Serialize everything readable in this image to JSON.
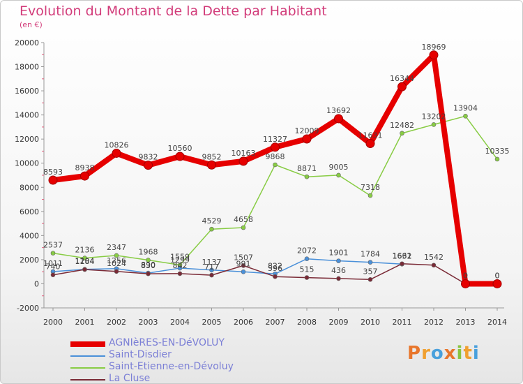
{
  "title": "Evolution du Montant de la Dette par Habitant",
  "subtitle": "(en €)",
  "logo": "Proxiti",
  "chart_data": {
    "type": "line",
    "title": "Evolution du Montant de la Dette par Habitant",
    "subtitle": "(en €)",
    "x": [
      "2000",
      "2001",
      "2002",
      "2003",
      "2004",
      "2005",
      "2006",
      "2007",
      "2008",
      "2009",
      "2010",
      "2011",
      "2012",
      "2013",
      "2014"
    ],
    "ylim": [
      -2000,
      20000
    ],
    "yticks": [
      -2000,
      0,
      2000,
      4000,
      6000,
      8000,
      10000,
      12000,
      14000,
      16000,
      18000,
      20000
    ],
    "grid": false,
    "legend_position": "bottom-left",
    "series": [
      {
        "name": "AGNIèRES-EN-DéVOLUY",
        "color": "#e60000",
        "values": [
          8593,
          8938,
          10826,
          9832,
          10560,
          9852,
          10163,
          11327,
          12009,
          13692,
          11631,
          16344,
          18969,
          0,
          0
        ],
        "labels": [
          "8593",
          "8938",
          "10826",
          "9832",
          "10560",
          "9852",
          "10163",
          "11327",
          "12009",
          "13692",
          "11631",
          "16344",
          "18969",
          "0",
          "0"
        ]
      },
      {
        "name": "Saint-Disdier",
        "color": "#4a90d9",
        "values": [
          1011,
          1204,
          1256,
          890,
          1299,
          1137,
          991,
          822,
          2072,
          1901,
          1784,
          1632,
          null,
          null,
          null
        ],
        "labels": [
          "1011",
          "1204",
          "1256",
          "890",
          "1299",
          "1137",
          "991",
          "822",
          "2072",
          "1901",
          "1784",
          "1632",
          "",
          "",
          ""
        ]
      },
      {
        "name": "Saint-Etienne-en-Dévoluy",
        "color": "#88cc44",
        "values": [
          2537,
          2136,
          2347,
          1968,
          1559,
          4529,
          4658,
          9868,
          8871,
          9005,
          7318,
          12482,
          13202,
          13904,
          10335
        ],
        "labels": [
          "2537",
          "2136",
          "2347",
          "1968",
          "1559",
          "4529",
          "4658",
          "9868",
          "8871",
          "9005",
          "7318",
          "12482",
          "13202",
          "13904",
          "10335"
        ]
      },
      {
        "name": "La Cluse",
        "color": "#7a2a36",
        "values": [
          740,
          1184,
          1024,
          830,
          842,
          717,
          1507,
          596,
          515,
          436,
          357,
          1661,
          1542,
          0,
          0
        ],
        "labels": [
          "740",
          "1184",
          "1024",
          "830",
          "842",
          "717",
          "1507",
          "596",
          "515",
          "436",
          "357",
          "1661",
          "1542",
          "0",
          "0"
        ]
      }
    ]
  }
}
